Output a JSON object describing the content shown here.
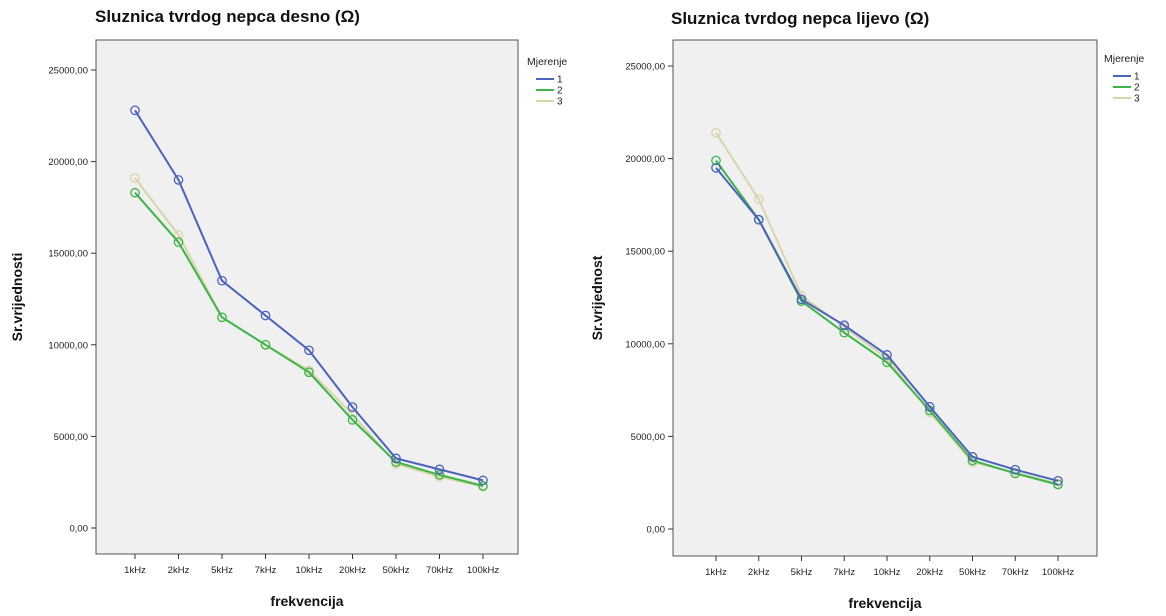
{
  "chart_data": [
    {
      "type": "line",
      "title": "Sluznica tvrdog nepca desno (Ω)",
      "xlabel": "frekvencija",
      "ylabel": "Sr.vrijednosti",
      "ylim": [
        0,
        25000
      ],
      "yticks": [
        "0,00",
        "5000,00",
        "10000,00",
        "15000,00",
        "20000,00",
        "25000,00"
      ],
      "categories": [
        "1kHz",
        "2kHz",
        "5kHz",
        "7kHz",
        "10kHz",
        "20kHz",
        "50kHz",
        "70kHz",
        "100kHz"
      ],
      "legend_title": "Mjerenje",
      "legend_position": "right",
      "grid": false,
      "background": "#f0f0f0",
      "series": [
        {
          "name": "1",
          "color": "#4a63bd",
          "values": [
            22800,
            19000,
            13500,
            11600,
            9700,
            6600,
            3800,
            3200,
            2600
          ]
        },
        {
          "name": "2",
          "color": "#3db54a",
          "values": [
            18300,
            15600,
            11500,
            10000,
            8500,
            5900,
            3600,
            2900,
            2300
          ]
        },
        {
          "name": "3",
          "color": "#d9d5a8",
          "values": [
            19100,
            16000,
            11500,
            10000,
            8600,
            6200,
            3500,
            2800,
            2250
          ]
        }
      ]
    },
    {
      "type": "line",
      "title": "Sluznica tvrdog nepca lijevo (Ω)",
      "xlabel": "frekvencija",
      "ylabel": "Sr.vrijednost",
      "ylim": [
        0,
        25000
      ],
      "yticks": [
        "0,00",
        "5000,00",
        "10000,00",
        "15000,00",
        "20000,00",
        "25000,00"
      ],
      "categories": [
        "1kHz",
        "2kHz",
        "5kHz",
        "7kHz",
        "10kHz",
        "20kHz",
        "50kHz",
        "70kHz",
        "100kHz"
      ],
      "legend_title": "Mjerenje",
      "legend_position": "right",
      "grid": false,
      "background": "#f0f0f0",
      "series": [
        {
          "name": "1",
          "color": "#4a63bd",
          "values": [
            19500,
            16700,
            12400,
            11000,
            9400,
            6600,
            3900,
            3200,
            2600
          ]
        },
        {
          "name": "2",
          "color": "#3db54a",
          "values": [
            19900,
            16700,
            12300,
            10600,
            9000,
            6400,
            3700,
            3000,
            2400
          ]
        },
        {
          "name": "3",
          "color": "#d9d5a8",
          "values": [
            21400,
            17800,
            12600,
            10900,
            9200,
            6300,
            3600,
            3050,
            2450
          ]
        }
      ]
    }
  ]
}
